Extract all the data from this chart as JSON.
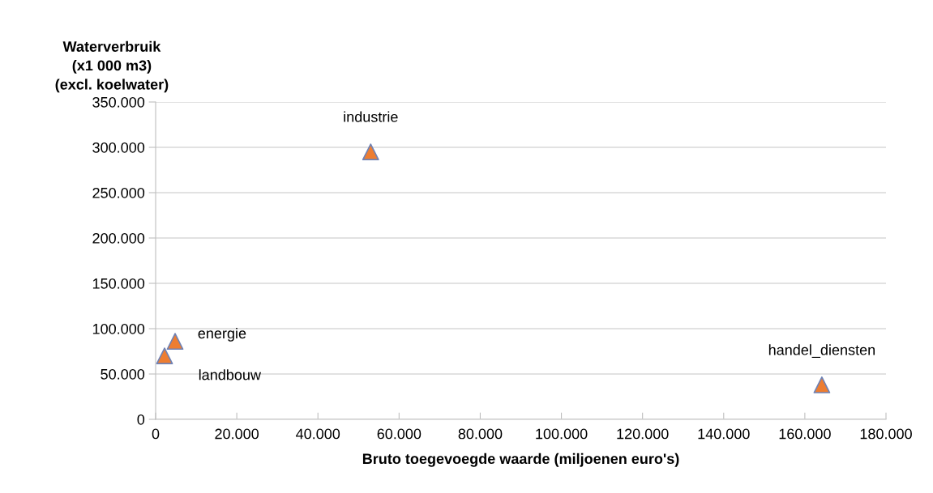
{
  "chart_data": {
    "type": "scatter",
    "xlabel": "Bruto toegevoegde waarde (miljoenen euro's)",
    "ylabel": "Waterverbruik\n(x1 000 m3)\n(excl. koelwater)",
    "x": [
      2200,
      4800,
      53000,
      164200
    ],
    "series": [
      {
        "color": "#ed7d31",
        "values": [
          70000,
          86000,
          295000,
          38000
        ]
      }
    ],
    "marker": "triangle",
    "grid": "y",
    "legend": false,
    "annotations": [
      {
        "text": "landbouw",
        "x": 2200,
        "y": 70000
      },
      {
        "text": "energie",
        "x": 4800,
        "y": 86000
      },
      {
        "text": "industrie",
        "x": 53000,
        "y": 295000
      },
      {
        "text": "handel_diensten",
        "x": 164200,
        "y": 38000
      }
    ],
    "xlim": [
      0,
      180000
    ],
    "xticks": [
      {
        "value": 0,
        "label": "0"
      },
      {
        "value": 20000,
        "label": "20.000"
      },
      {
        "value": 40000,
        "label": "40.000"
      },
      {
        "value": 60000,
        "label": "60.000"
      },
      {
        "value": 80000,
        "label": "80.000"
      },
      {
        "value": 100000,
        "label": "100.000"
      },
      {
        "value": 120000,
        "label": "120.000"
      },
      {
        "value": 140000,
        "label": "140.000"
      },
      {
        "value": 160000,
        "label": "160.000"
      },
      {
        "value": 180000,
        "label": "180.000"
      }
    ],
    "ylim": [
      0,
      350000
    ],
    "yticks": [
      {
        "value": 0,
        "label": "0"
      },
      {
        "value": 50000,
        "label": "50.000"
      },
      {
        "value": 100000,
        "label": "100.000"
      },
      {
        "value": 150000,
        "label": "150.000"
      },
      {
        "value": 200000,
        "label": "200.000"
      },
      {
        "value": 250000,
        "label": "250.000"
      },
      {
        "value": 300000,
        "label": "300.000"
      },
      {
        "value": 350000,
        "label": "350.000"
      }
    ]
  }
}
